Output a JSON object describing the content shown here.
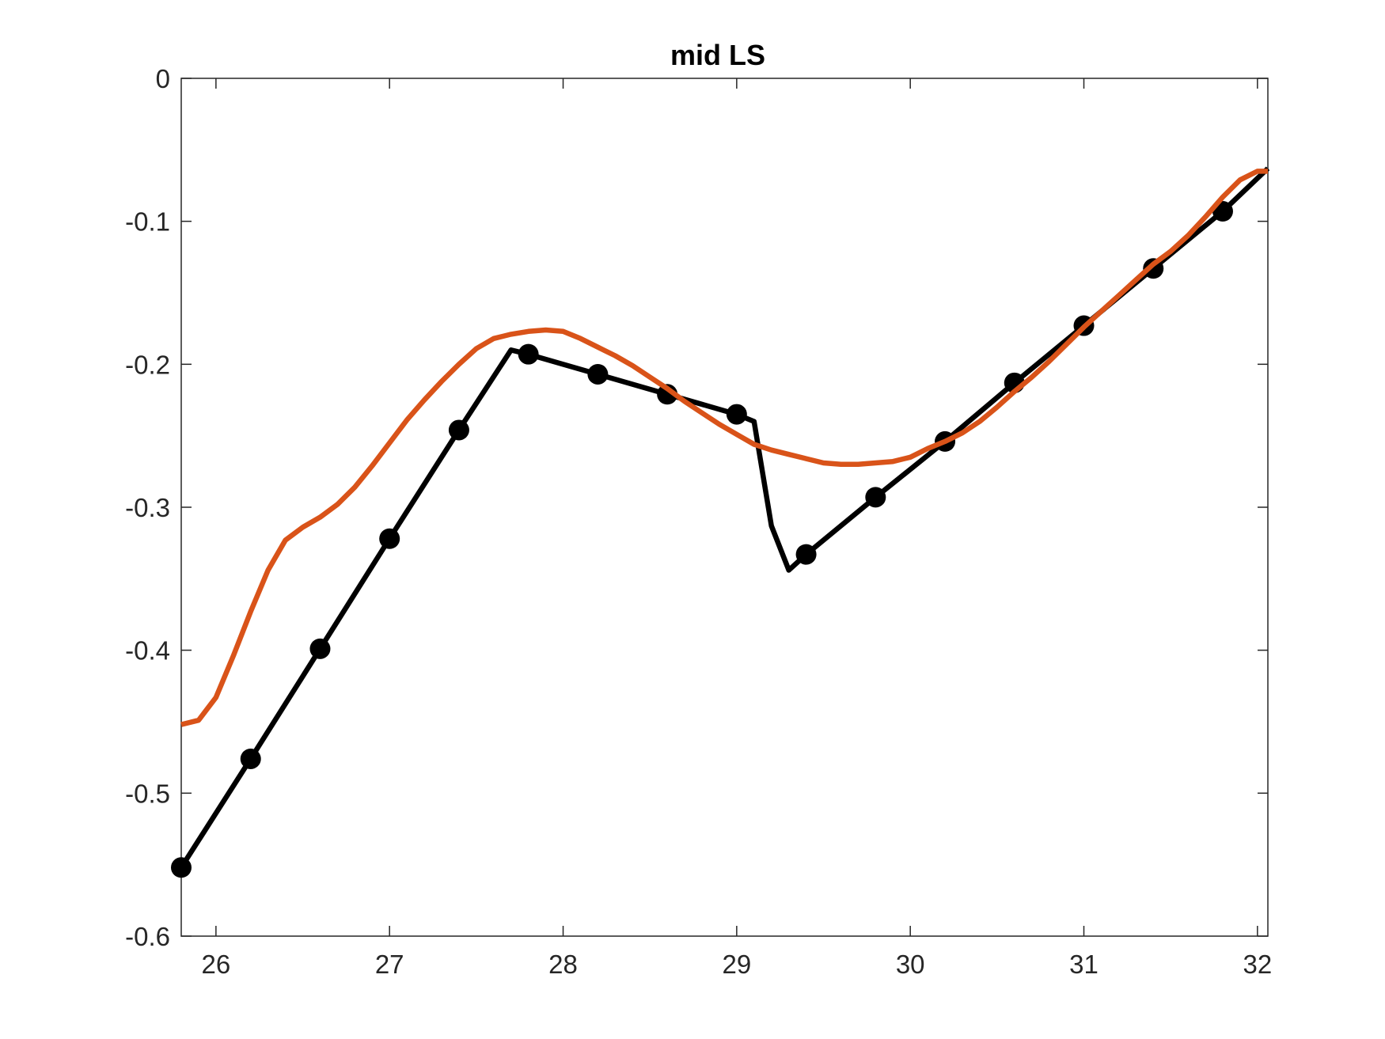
{
  "chart_data": {
    "type": "line",
    "title": "mid LS",
    "xlabel": "",
    "ylabel": "",
    "xlim": [
      25.8,
      32.06
    ],
    "ylim": [
      -0.6,
      0
    ],
    "xticks": [
      26,
      27,
      28,
      29,
      30,
      31,
      32
    ],
    "yticks": [
      -0.6,
      -0.5,
      -0.4,
      -0.3,
      -0.2,
      -0.1,
      0
    ],
    "xtick_labels": [
      "26",
      "27",
      "28",
      "29",
      "30",
      "31",
      "32"
    ],
    "ytick_labels": [
      "-0.6",
      "-0.5",
      "-0.4",
      "-0.3",
      "-0.2",
      "-0.1",
      "0"
    ],
    "grid": false,
    "legend": "none",
    "series": [
      {
        "color": "#000000",
        "style": "line",
        "x": [
          25.8,
          26.2,
          26.6,
          27.0,
          27.4,
          27.7,
          27.8,
          28.2,
          28.6,
          29.0,
          29.1,
          29.2,
          29.3,
          29.4,
          29.8,
          30.2,
          30.6,
          31.0,
          31.4,
          31.8,
          32.06
        ],
        "y": [
          -0.552,
          -0.476,
          -0.399,
          -0.322,
          -0.246,
          -0.19,
          -0.193,
          -0.207,
          -0.221,
          -0.235,
          -0.24,
          -0.313,
          -0.344,
          -0.333,
          -0.293,
          -0.254,
          -0.213,
          -0.173,
          -0.133,
          -0.093,
          -0.063
        ]
      },
      {
        "color": "#000000",
        "style": "markers",
        "x": [
          25.8,
          26.2,
          26.6,
          27.0,
          27.4,
          27.8,
          28.2,
          28.6,
          29.0,
          29.4,
          29.8,
          30.2,
          30.6,
          31.0,
          31.4,
          31.8
        ],
        "y": [
          -0.552,
          -0.476,
          -0.399,
          -0.322,
          -0.246,
          -0.193,
          -0.207,
          -0.221,
          -0.235,
          -0.333,
          -0.293,
          -0.254,
          -0.213,
          -0.173,
          -0.133,
          -0.093
        ]
      },
      {
        "color": "#D95319",
        "style": "line",
        "x": [
          25.8,
          25.9,
          26.0,
          26.1,
          26.2,
          26.3,
          26.4,
          26.5,
          26.6,
          26.7,
          26.8,
          26.9,
          27.0,
          27.1,
          27.2,
          27.3,
          27.4,
          27.5,
          27.6,
          27.7,
          27.8,
          27.9,
          28.0,
          28.1,
          28.2,
          28.3,
          28.4,
          28.5,
          28.6,
          28.7,
          28.8,
          28.9,
          29.0,
          29.1,
          29.2,
          29.3,
          29.4,
          29.5,
          29.6,
          29.7,
          29.8,
          29.9,
          30.0,
          30.1,
          30.2,
          30.3,
          30.4,
          30.5,
          30.6,
          30.7,
          30.8,
          30.9,
          31.0,
          31.1,
          31.2,
          31.3,
          31.4,
          31.5,
          31.6,
          31.7,
          31.8,
          31.9,
          32.0,
          32.06
        ],
        "y": [
          -0.452,
          -0.449,
          -0.433,
          -0.404,
          -0.373,
          -0.344,
          -0.323,
          -0.314,
          -0.307,
          -0.298,
          -0.286,
          -0.271,
          -0.255,
          -0.239,
          -0.225,
          -0.212,
          -0.2,
          -0.189,
          -0.182,
          -0.179,
          -0.177,
          -0.176,
          -0.177,
          -0.182,
          -0.188,
          -0.194,
          -0.201,
          -0.209,
          -0.217,
          -0.226,
          -0.234,
          -0.242,
          -0.249,
          -0.256,
          -0.26,
          -0.263,
          -0.266,
          -0.269,
          -0.27,
          -0.27,
          -0.269,
          -0.268,
          -0.265,
          -0.259,
          -0.254,
          -0.248,
          -0.24,
          -0.23,
          -0.219,
          -0.209,
          -0.198,
          -0.186,
          -0.174,
          -0.163,
          -0.152,
          -0.141,
          -0.13,
          -0.121,
          -0.11,
          -0.097,
          -0.083,
          -0.071,
          -0.065,
          -0.065
        ]
      }
    ]
  }
}
